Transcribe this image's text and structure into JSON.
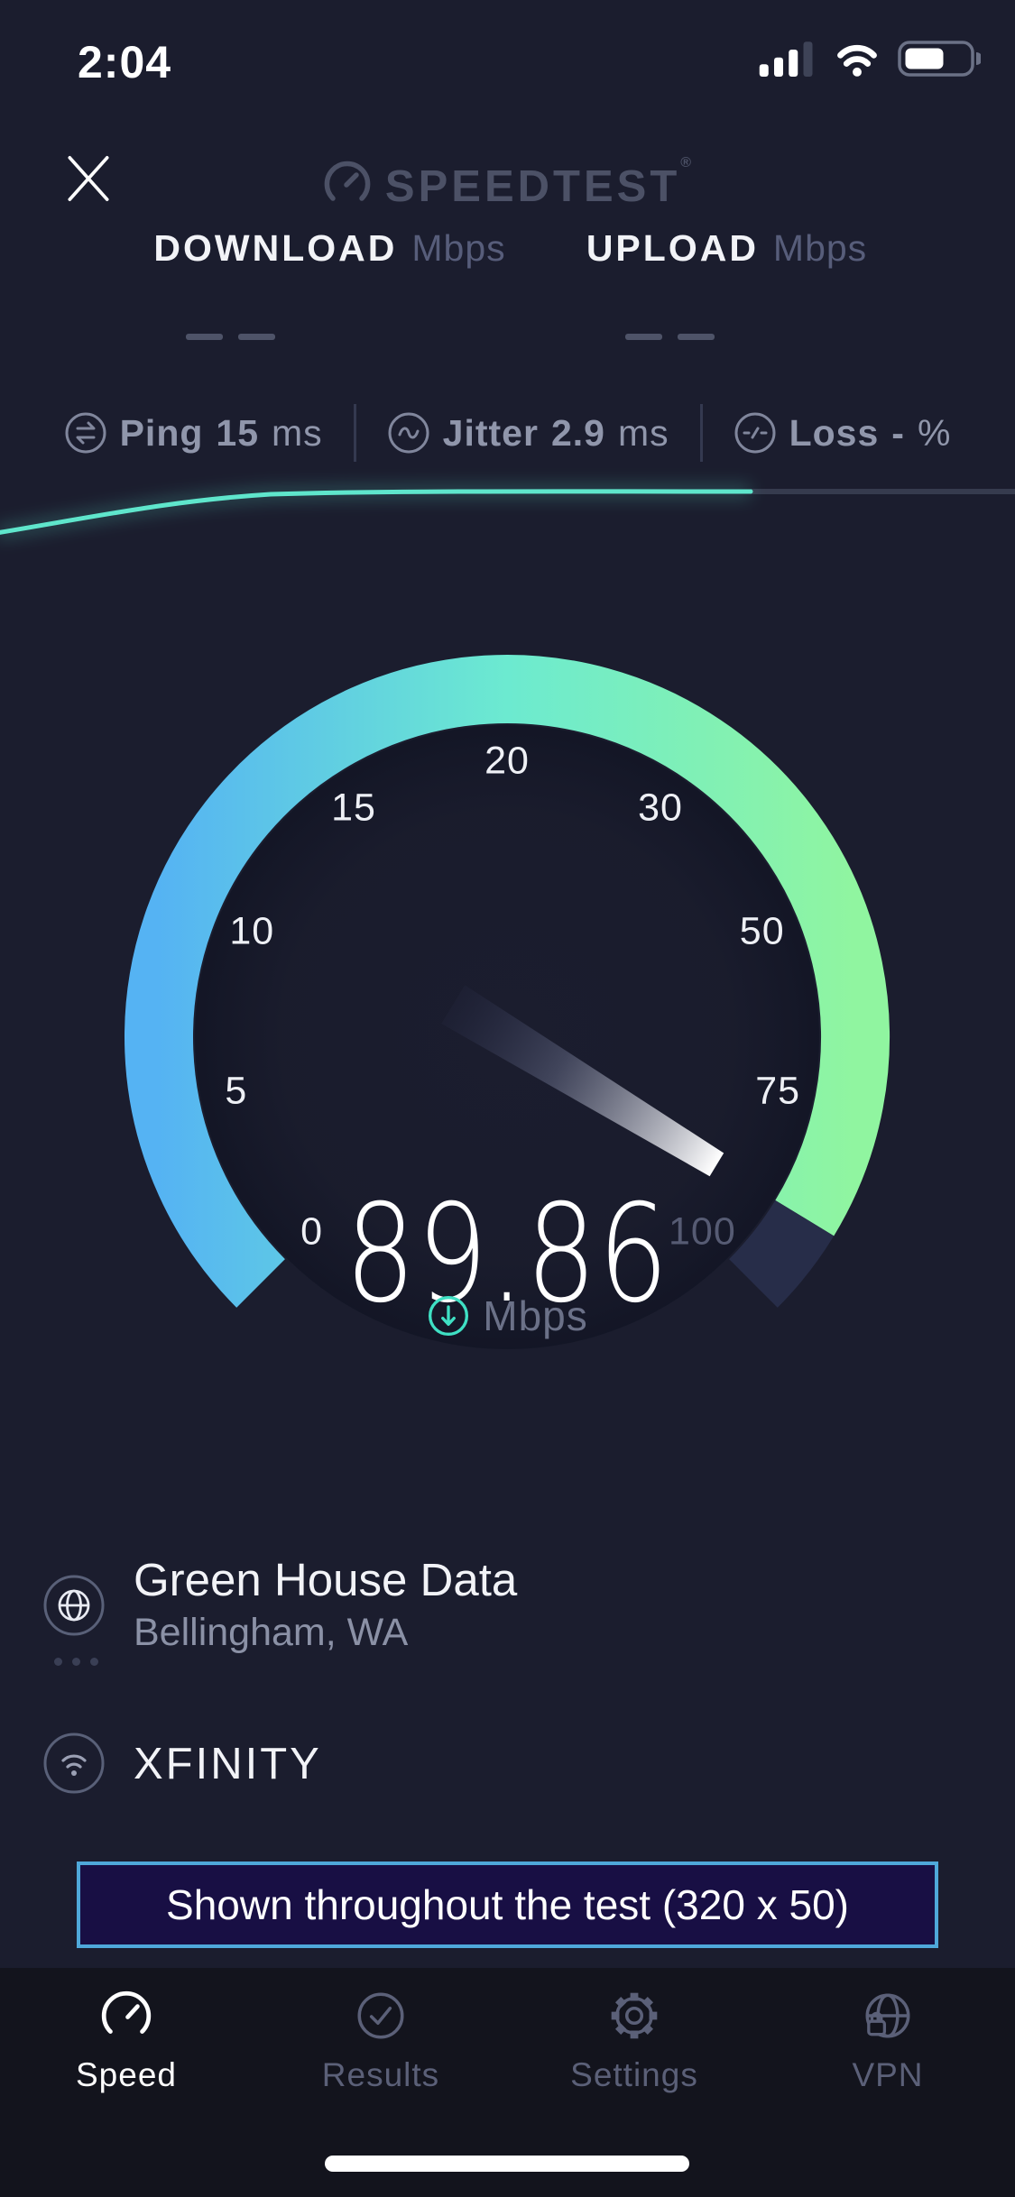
{
  "status_bar": {
    "time": "2:04"
  },
  "header": {
    "logo_text": "SPEEDTEST",
    "registered_mark": "®"
  },
  "metrics": {
    "download": {
      "label": "DOWNLOAD",
      "unit": "Mbps",
      "placeholder": "— —"
    },
    "upload": {
      "label": "UPLOAD",
      "unit": "Mbps",
      "placeholder": "— —"
    }
  },
  "stats": {
    "ping": {
      "label": "Ping",
      "value": "15",
      "unit": "ms"
    },
    "jitter": {
      "label": "Jitter",
      "value": "2.9",
      "unit": "ms"
    },
    "loss": {
      "label": "Loss",
      "value": "-",
      "unit": "%"
    }
  },
  "gauge": {
    "value": "89.86",
    "unit": "Mbps",
    "scale": [
      {
        "v": "0",
        "angle": -135
      },
      {
        "v": "5",
        "angle": -101.25
      },
      {
        "v": "10",
        "angle": -67.5
      },
      {
        "v": "15",
        "angle": -33.75
      },
      {
        "v": "20",
        "angle": 0
      },
      {
        "v": "30",
        "angle": 33.75
      },
      {
        "v": "50",
        "angle": 67.5
      },
      {
        "v": "75",
        "angle": 101.25
      },
      {
        "v": "100",
        "angle": 135,
        "dim": true
      }
    ],
    "colors": {
      "blue": "#55b3f3",
      "teal": "#6cead0",
      "green": "#90f5a0",
      "rest": "#272d49"
    }
  },
  "graph": {
    "line_color": "#5fe6cc",
    "track_color": "#363b4e"
  },
  "server": {
    "name": "Green House Data",
    "location": "Bellingham, WA",
    "isp": "XFINITY"
  },
  "ad": {
    "text": "Shown throughout the test (320 x 50)"
  },
  "tab_bar": {
    "speed": {
      "label": "Speed"
    },
    "results": {
      "label": "Results"
    },
    "settings": {
      "label": "Settings"
    },
    "vpn": {
      "label": "VPN"
    }
  },
  "colors": {
    "background": "#1b1d2e",
    "tabbar_background": "#13141d",
    "accent_teal": "#3fe0c4",
    "accent_purple": "#ab70f7",
    "text_bright": "#f2f3f7",
    "text_gray": "#9096ab",
    "text_dim": "#575d7a",
    "ad_border": "#4fa8da",
    "ad_background": "#180f44"
  }
}
